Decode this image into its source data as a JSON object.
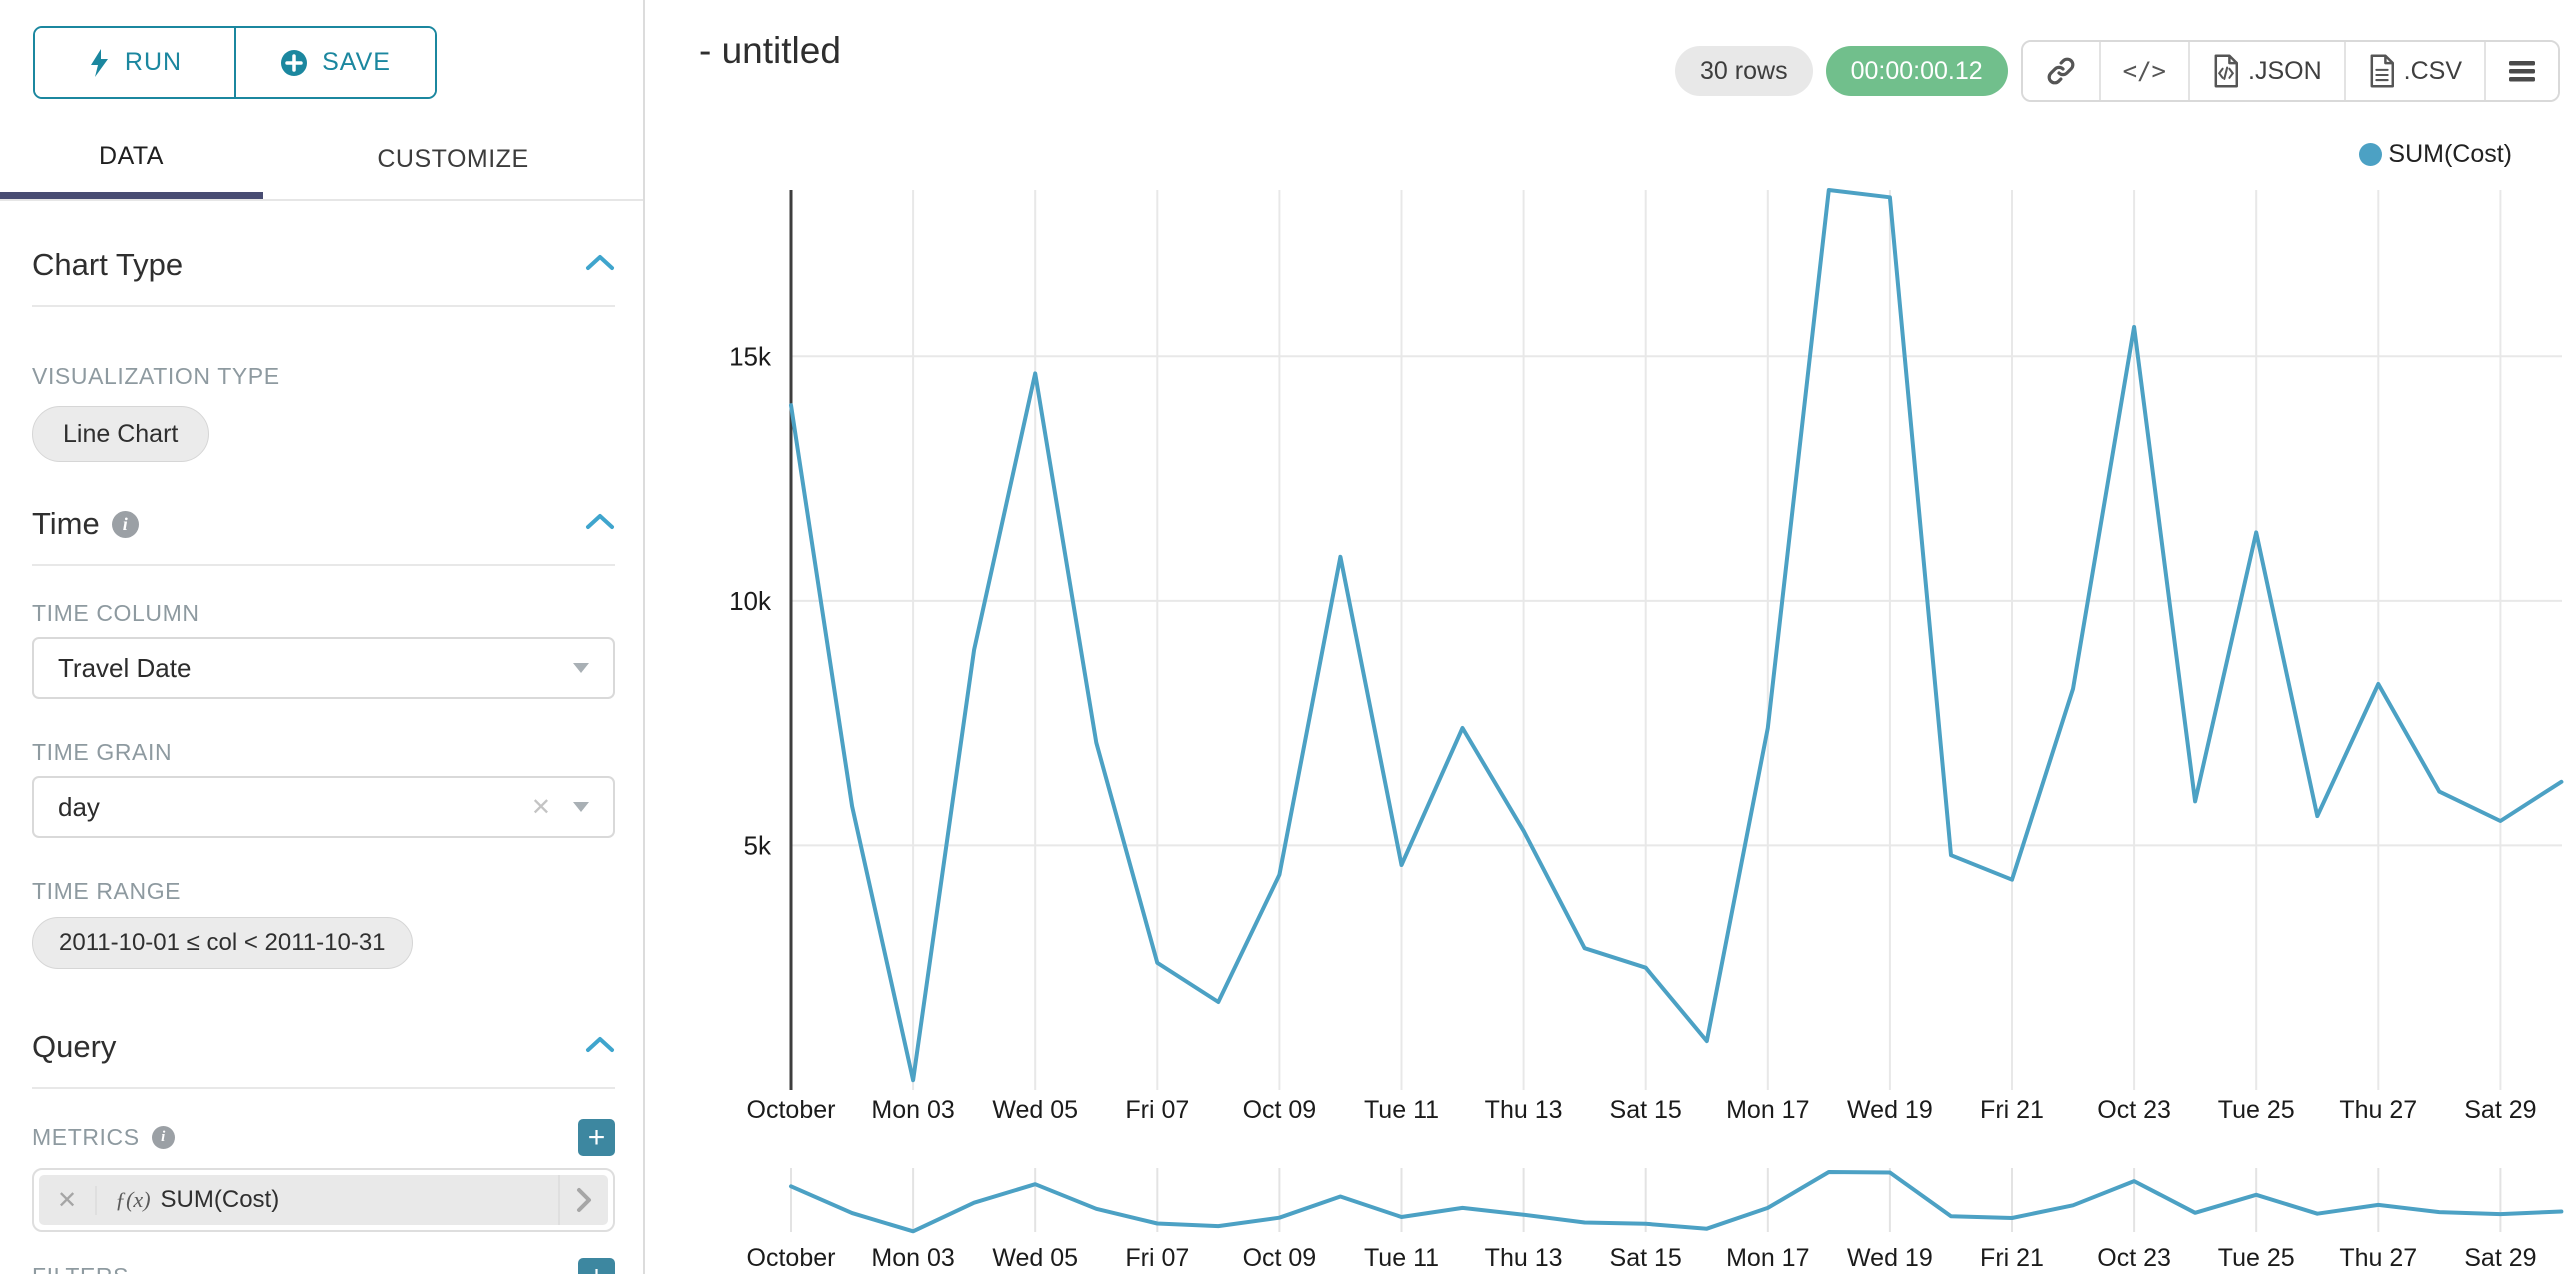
{
  "sidebar": {
    "run_label": "RUN",
    "save_label": "SAVE",
    "tabs": {
      "data": "DATA",
      "customize": "CUSTOMIZE"
    },
    "sections": {
      "chart_type": {
        "title": "Chart Type",
        "viz_type_label": "VISUALIZATION TYPE",
        "viz_type_value": "Line Chart"
      },
      "time": {
        "title": "Time",
        "time_column_label": "TIME COLUMN",
        "time_column_value": "Travel Date",
        "time_grain_label": "TIME GRAIN",
        "time_grain_value": "day",
        "time_range_label": "TIME RANGE",
        "time_range_value": "2011-10-01 ≤ col < 2011-10-31"
      },
      "query": {
        "title": "Query",
        "metrics_label": "METRICS",
        "metric_fx": "ƒ(x)",
        "metric_value": "SUM(Cost)",
        "metric_clear": "✕",
        "filters_label": "FILTERS",
        "plus_label": "+"
      }
    }
  },
  "header": {
    "title": "- untitled",
    "row_count": "30 rows",
    "query_time": "00:00:00.12",
    "json_label": ".JSON",
    "csv_label": ".CSV",
    "code_glyph": "</>"
  },
  "legend": {
    "label": "SUM(Cost)"
  },
  "colors": {
    "accent_teal": "#1b879f",
    "line_blue": "#4ca1c4",
    "tab_underline": "#484c72",
    "badge_green": "#71bf8c",
    "plus_button": "#3d87a0",
    "gridline": "#e8e8e8",
    "axis_line": "#3d3d3d",
    "tick_text": "#1b1b1b"
  },
  "chart_data": {
    "type": "line",
    "title": "",
    "xlabel": "",
    "ylabel": "",
    "x_dates": [
      "2011-10-01",
      "2011-10-02",
      "2011-10-03",
      "2011-10-04",
      "2011-10-05",
      "2011-10-06",
      "2011-10-07",
      "2011-10-08",
      "2011-10-09",
      "2011-10-10",
      "2011-10-11",
      "2011-10-12",
      "2011-10-13",
      "2011-10-14",
      "2011-10-15",
      "2011-10-16",
      "2011-10-17",
      "2011-10-18",
      "2011-10-19",
      "2011-10-20",
      "2011-10-21",
      "2011-10-22",
      "2011-10-23",
      "2011-10-24",
      "2011-10-25",
      "2011-10-26",
      "2011-10-27",
      "2011-10-28",
      "2011-10-29",
      "2011-10-30"
    ],
    "series": [
      {
        "name": "SUM(Cost)",
        "values": [
          14000,
          5800,
          200,
          9000,
          14650,
          7100,
          2600,
          1800,
          4400,
          10900,
          4600,
          7400,
          5300,
          2900,
          2500,
          1000,
          7400,
          18400,
          18250,
          4800,
          4300,
          8200,
          15600,
          5900,
          11400,
          5600,
          8300,
          6100,
          5500,
          6300
        ]
      }
    ],
    "x_tick_days": [
      1,
      3,
      5,
      7,
      9,
      11,
      13,
      15,
      17,
      19,
      21,
      23,
      25,
      27,
      29
    ],
    "x_tick_labels": [
      "October",
      "Mon 03",
      "Wed 05",
      "Fri 07",
      "Oct 09",
      "Tue 11",
      "Thu 13",
      "Sat 15",
      "Mon 17",
      "Wed 19",
      "Fri 21",
      "Oct 23",
      "Tue 25",
      "Thu 27",
      "Sat 29"
    ],
    "y_ticks": [
      {
        "value": 5000,
        "label": "5k"
      },
      {
        "value": 10000,
        "label": "10k"
      },
      {
        "value": 15000,
        "label": "15k"
      }
    ],
    "ylim": [
      0,
      18400
    ],
    "grid": true,
    "legend_position": "top-right",
    "has_mini_context_chart": true
  }
}
